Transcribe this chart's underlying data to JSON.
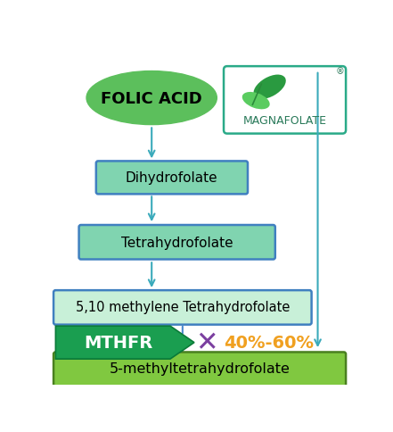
{
  "folic_acid_label": "FOLIC ACID",
  "folic_acid_fill": "#5cbf5c",
  "magnafolate_label": "MAGNAFOLATE",
  "magnafolate_border_color": "#2aaa88",
  "magnafolate_text_color": "#2a7a5a",
  "box1_label": "Dihydrofolate",
  "box1_fill": "#80d4b0",
  "box1_edge": "#4080c0",
  "box2_label": "Tetrahydrofolate",
  "box2_fill": "#80d4b0",
  "box2_edge": "#4080c0",
  "box3_label": "5,10 methylene Tetrahydrofolate",
  "box3_fill": "#c8f0d8",
  "box3_edge": "#4080c0",
  "mthfr_label": "MTHFR",
  "mthfr_fill": "#1a9e50",
  "mthfr_edge": "#0a7a38",
  "mthfr_text_color": "#ffffff",
  "percent_label": "40%-60%",
  "percent_color": "#f0a020",
  "x_color": "#7b3fa0",
  "box4_label": "5-methyltetrahydrofolate",
  "box4_fill": "#80c840",
  "box4_edge": "#4a8020",
  "arrow_color": "#3aaabb",
  "dashed_color": "#4a88cc",
  "right_line_color": "#3aaabb",
  "leaf1_color": "#2a9a40",
  "leaf2_color": "#5acc60",
  "background_color": "#ffffff"
}
